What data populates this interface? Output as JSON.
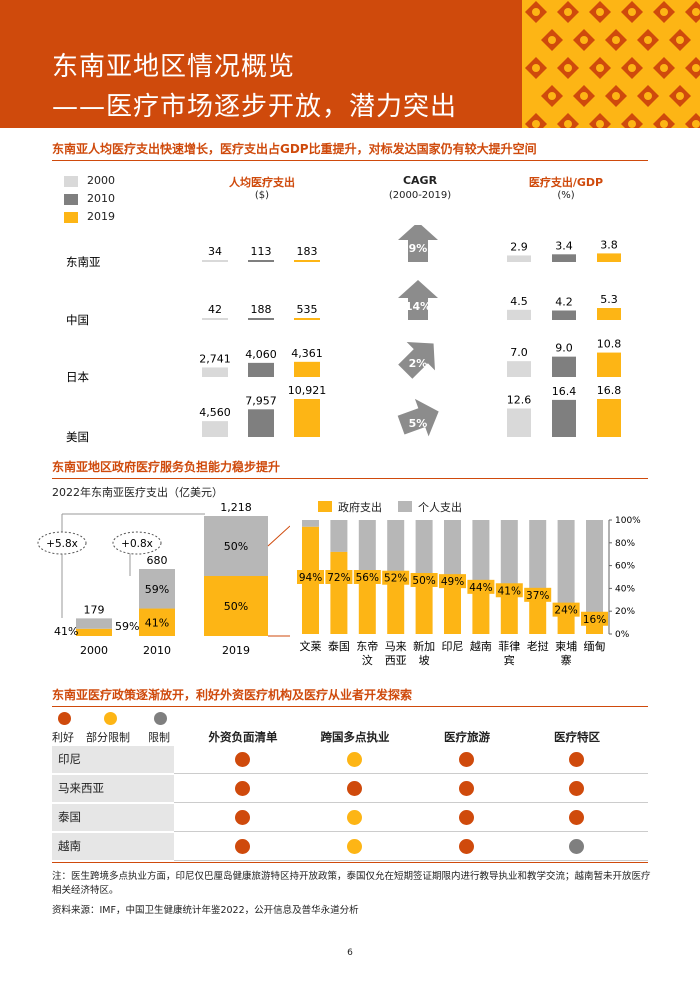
{
  "colors": {
    "orange": "#cf4a0c",
    "yellow": "#fdb515",
    "light_gray": "#d9d9d9",
    "dark_gray": "#7f7f7f",
    "mid_gray": "#b7b7b7"
  },
  "banner": {
    "title_line1": "东南亚地区情况概览",
    "title_line2": "——医疗市场逐步开放，潜力突出"
  },
  "section1": {
    "title": "东南亚人均医疗支出快速增长，医疗支出占GDP比重提升，对标发达国家仍有较大提升空间",
    "legend": [
      "2000",
      "2010",
      "2019"
    ],
    "header_spend": "人均医疗支出",
    "header_spend_unit": "($)",
    "header_cagr": "CAGR",
    "header_cagr_period": "(2000-2019)",
    "header_gdp": "医疗支出/GDP",
    "header_gdp_unit": "(%)"
  },
  "chart_data": [
    {
      "type": "bar",
      "title": "人均医疗支出",
      "unit": "($)",
      "categories": [
        "东南亚",
        "中国",
        "日本",
        "美国"
      ],
      "series": [
        {
          "name": "2000",
          "values": [
            34,
            42,
            2741,
            4560
          ],
          "labels": [
            "34",
            "42",
            "2,741",
            "4,560"
          ]
        },
        {
          "name": "2010",
          "values": [
            113,
            188,
            4060,
            7957
          ],
          "labels": [
            "113",
            "188",
            "4,060",
            "7,957"
          ]
        },
        {
          "name": "2019",
          "values": [
            183,
            535,
            4361,
            10921
          ],
          "labels": [
            "183",
            "535",
            "4,361",
            "10,921"
          ]
        }
      ]
    },
    {
      "type": "table",
      "title": "CAGR",
      "period": "(2000-2019)",
      "categories": [
        "东南亚",
        "中国",
        "日本",
        "美国"
      ],
      "values": [
        "9%",
        "14%",
        "2%",
        "5%"
      ]
    },
    {
      "type": "bar",
      "title": "医疗支出/GDP",
      "unit": "(%)",
      "categories": [
        "东南亚",
        "中国",
        "日本",
        "美国"
      ],
      "series": [
        {
          "name": "2000",
          "values": [
            2.9,
            4.5,
            7.0,
            12.6
          ],
          "labels": [
            "2.9",
            "4.5",
            "7.0",
            "12.6"
          ]
        },
        {
          "name": "2010",
          "values": [
            3.4,
            4.2,
            9.0,
            16.4
          ],
          "labels": [
            "3.4",
            "4.2",
            "9.0",
            "16.4"
          ]
        },
        {
          "name": "2019",
          "values": [
            3.8,
            5.3,
            10.8,
            16.8
          ],
          "labels": [
            "3.8",
            "5.3",
            "10.8",
            "16.8"
          ]
        }
      ]
    },
    {
      "type": "bar",
      "title": "2022年东南亚医疗支出（亿美元）",
      "categories": [
        "2000",
        "2010",
        "2019"
      ],
      "totals": [
        179,
        680,
        1218
      ],
      "total_labels": [
        "179",
        "680",
        "1,218"
      ],
      "series": [
        {
          "name": "政府支出",
          "values": [
            41,
            41,
            50
          ],
          "labels": [
            "41%",
            "41%",
            "50%"
          ]
        },
        {
          "name": "个人支出",
          "values": [
            59,
            59,
            50
          ],
          "labels": [
            "59%",
            "59%",
            "50%"
          ]
        }
      ],
      "growth_annotations": [
        "+5.8x",
        "+0.8x"
      ]
    },
    {
      "type": "bar",
      "stacked": "100%",
      "categories": [
        "文莱",
        "泰国",
        "东帝汶",
        "马来西亚",
        "新加坡",
        "印尼",
        "越南",
        "菲律宾",
        "老挝",
        "柬埔寨",
        "缅甸"
      ],
      "category_lines": [
        [
          "文莱"
        ],
        [
          "泰国"
        ],
        [
          "东帝",
          "汶"
        ],
        [
          "马来",
          "西亚"
        ],
        [
          "新加",
          "坡"
        ],
        [
          "印尼"
        ],
        [
          "越南"
        ],
        [
          "菲律",
          "宾"
        ],
        [
          "老挝"
        ],
        [
          "柬埔",
          "寨"
        ],
        [
          "缅甸"
        ]
      ],
      "series": [
        {
          "name": "政府支出",
          "values": [
            94,
            72,
            56,
            52,
            50,
            49,
            44,
            41,
            37,
            24,
            16
          ]
        },
        {
          "name": "个人支出",
          "values": [
            6,
            28,
            44,
            48,
            50,
            51,
            56,
            59,
            63,
            76,
            84
          ]
        }
      ],
      "ylim": [
        0,
        100
      ],
      "yticks": [
        "0%",
        "20%",
        "40%",
        "60%",
        "80%",
        "100%"
      ],
      "legend": [
        "政府支出",
        "个人支出"
      ]
    }
  ],
  "section2": {
    "title": "东南亚地区政府医疗服务负担能力稳步提升",
    "subtitle": "2022年东南亚医疗支出（亿美元）"
  },
  "section3": {
    "title": "东南亚医疗政策逐渐放开，利好外资医疗机构及医疗从业者开发探索",
    "legend": [
      {
        "label": "利好",
        "color": "#cf4a0c"
      },
      {
        "label": "部分限制",
        "color": "#fdb515"
      },
      {
        "label": "限制",
        "color": "#7f7f7f"
      }
    ],
    "columns": [
      "外资负面清单",
      "跨国多点执业",
      "医疗旅游",
      "医疗特区"
    ],
    "rows": [
      {
        "country": "印尼",
        "status": [
          "利好",
          "部分限制",
          "利好",
          "利好"
        ]
      },
      {
        "country": "马来西亚",
        "status": [
          "利好",
          "利好",
          "利好",
          "利好"
        ]
      },
      {
        "country": "泰国",
        "status": [
          "利好",
          "部分限制",
          "利好",
          "利好"
        ]
      },
      {
        "country": "越南",
        "status": [
          "利好",
          "部分限制",
          "利好",
          "限制"
        ]
      }
    ]
  },
  "footer": {
    "note": "注：医生跨境多点执业方面，印尼仅巴厘岛健康旅游特区持开放政策，泰国仅允在短期签证期限内进行教导执业和教学交流；越南暂未开放医疗相关经济特区。",
    "source": "资料来源：IMF，中国卫生健康统计年鉴2022，公开信息及普华永道分析",
    "page": "6"
  }
}
